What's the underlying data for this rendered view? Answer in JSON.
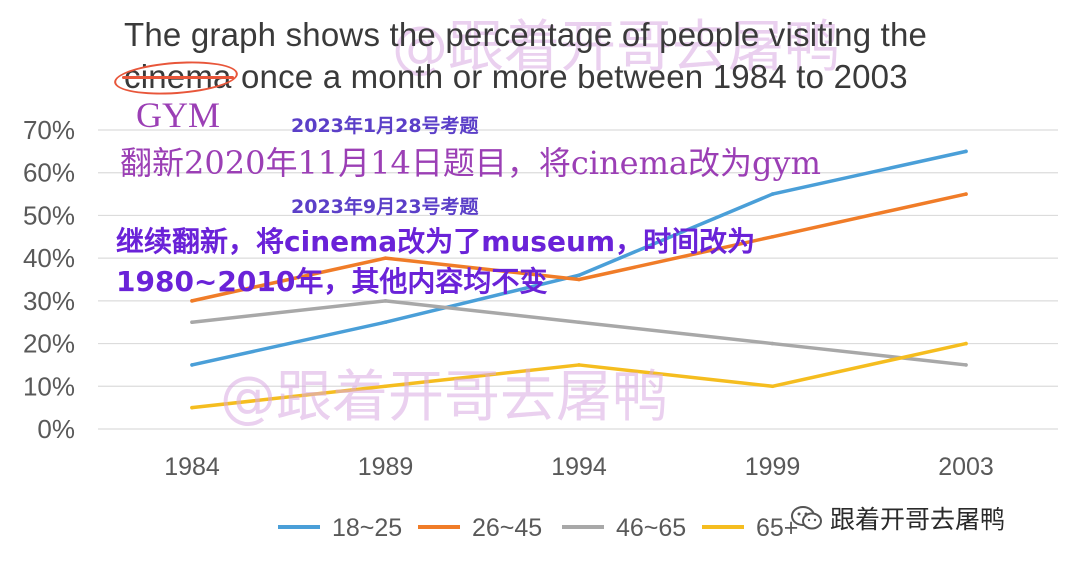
{
  "title": {
    "line1": "The graph shows the percentage of people visiting the",
    "struck_word": "cinema",
    "line2_rest": " once a month or more between 1984 to 2003"
  },
  "annotations": {
    "replacement_word": "GYM",
    "date1": "2023年1月28号考题",
    "note1": "翻新2020年11月14日题目，将cinema改为gym",
    "date2": "2023年9月23号考题",
    "note2_line1": "继续翻新，将cinema改为了museum，时间改为",
    "note2_line2": "1980~2010年，其他内容均不变"
  },
  "watermarks": {
    "top": "@跟着开哥去屠鸭",
    "middle": "@跟着开哥去屠鸭"
  },
  "brand": {
    "name": "跟着开哥去屠鸭",
    "icon": "wechat-icon"
  },
  "colors": {
    "s1": "#4a9fd8",
    "s2": "#f07c28",
    "s3": "#a8a8a8",
    "s4": "#f5bd1f",
    "grid": "#dcdcdc",
    "text": "#595959",
    "strike": "#e8563a"
  },
  "chart_data": {
    "type": "line",
    "categories": [
      "1984",
      "1989",
      "1994",
      "1999",
      "2003"
    ],
    "series": [
      {
        "name": "18~25",
        "values": [
          15,
          25,
          36,
          55,
          65
        ]
      },
      {
        "name": "26~45",
        "values": [
          30,
          40,
          35,
          45,
          55
        ]
      },
      {
        "name": "46~65",
        "values": [
          25,
          30,
          25,
          20,
          15
        ]
      },
      {
        "name": "65+",
        "values": [
          5,
          10,
          15,
          10,
          20
        ]
      }
    ],
    "ylim": [
      0,
      70
    ],
    "yticks": [
      "0%",
      "10%",
      "20%",
      "30%",
      "40%",
      "50%",
      "60%",
      "70%"
    ],
    "grid": true,
    "legend_position": "bottom"
  }
}
